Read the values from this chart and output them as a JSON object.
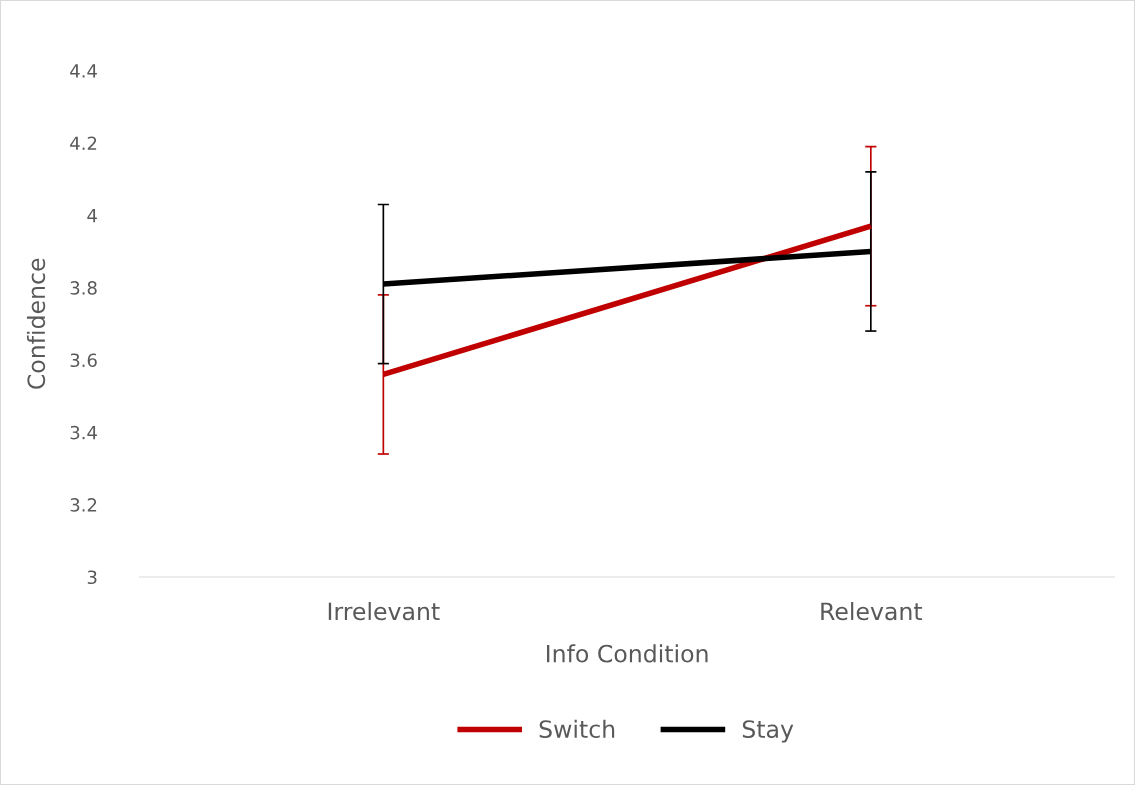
{
  "chart_data": {
    "type": "line",
    "xlabel": "Info Condition",
    "ylabel": "Confidence",
    "categories": [
      "Irrelevant",
      "Relevant"
    ],
    "series": [
      {
        "name": "Switch",
        "color": "#c00000",
        "values": [
          3.56,
          3.97
        ],
        "errors": [
          0.22,
          0.22
        ]
      },
      {
        "name": "Stay",
        "color": "#000000",
        "values": [
          3.81,
          3.9
        ],
        "errors": [
          0.22,
          0.22
        ]
      }
    ],
    "ylim": [
      3,
      4.4
    ],
    "yticks": [
      3,
      3.2,
      3.4,
      3.6,
      3.8,
      4,
      4.2,
      4.4
    ],
    "grid": false,
    "legend": "bottom",
    "marker": "none",
    "line_style": "solid"
  }
}
